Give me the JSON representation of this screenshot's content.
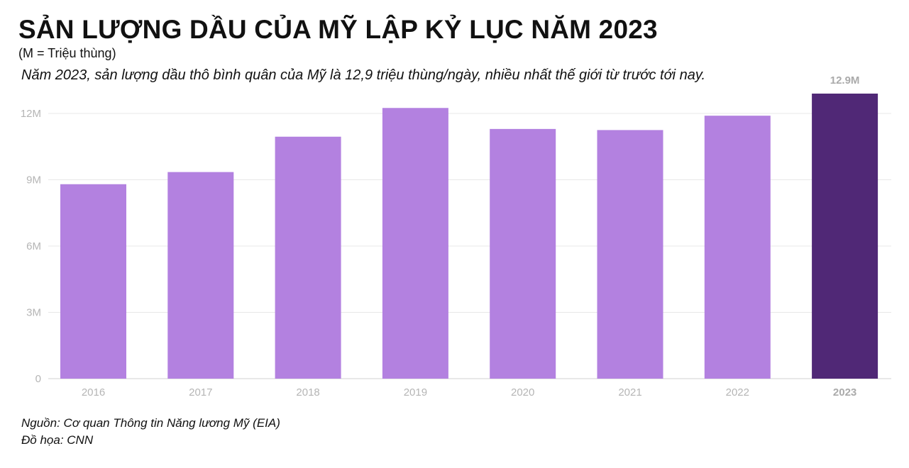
{
  "header": {
    "title": "SẢN LƯỢNG DẦU CỦA MỸ LẬP KỶ LỤC NĂM 2023",
    "unit_note": "(M = Triệu thùng)",
    "subtitle": "Năm 2023, sản lượng dầu thô bình quân của Mỹ là 12,9 triệu thùng/ngày, nhiều nhất thế giới từ trước tới nay."
  },
  "footer": {
    "source": "Nguồn: Cơ quan Thông tin Năng lương Mỹ (EIA)",
    "credit": "Đồ họa: CNN"
  },
  "colors": {
    "bar": "#b381e0",
    "highlight": "#502876",
    "grid": "#e8e8e8",
    "tick_label": "#b5b5b5",
    "highlight_label": "#aaaaaa"
  },
  "chart_data": {
    "type": "bar",
    "categories": [
      "2016",
      "2017",
      "2018",
      "2019",
      "2020",
      "2021",
      "2022",
      "2023"
    ],
    "values": [
      8.8,
      9.35,
      10.95,
      12.25,
      11.3,
      11.25,
      11.9,
      12.9
    ],
    "highlight_index": 7,
    "data_labels": [
      {
        "index": 7,
        "text": "12.9M"
      }
    ],
    "yticks": [
      {
        "value": 0,
        "label": "0"
      },
      {
        "value": 3,
        "label": "3M"
      },
      {
        "value": 6,
        "label": "6M"
      },
      {
        "value": 9,
        "label": "9M"
      },
      {
        "value": 12,
        "label": "12M"
      }
    ],
    "ylim": [
      0,
      12.9
    ],
    "grid": true,
    "xlabel": "",
    "ylabel": ""
  }
}
